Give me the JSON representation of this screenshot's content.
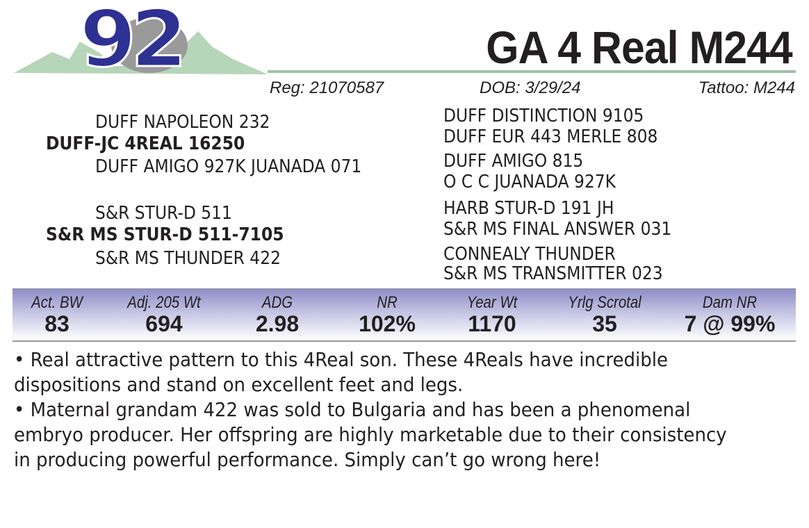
{
  "lot_number": "92",
  "title": "GA 4 Real M244",
  "reg": "Reg: 21070587",
  "dob": "DOB:  3/29/24",
  "tattoo": "Tattoo:  M244",
  "pedigree": {
    "sire": "DUFF-JC 4REAL 16250",
    "sire_sire": "DUFF NAPOLEON 232",
    "sire_dam": "DUFF AMIGO 927K JUANADA 071",
    "sss": "DUFF DISTINCTION 9105",
    "ssd": "DUFF EUR 443 MERLE 808",
    "sds": "DUFF AMIGO 815",
    "sdd": "O C C JUANADA 927K",
    "dam": "S&R MS STUR-D 511-7105",
    "dam_sire": "S&R STUR-D 511",
    "dam_dam": "S&R MS THUNDER 422",
    "dss": "HARB STUR-D 191 JH",
    "dsd": "S&R MS FINAL ANSWER 031",
    "dds": "CONNEALY THUNDER",
    "ddd": "S&R MS TRANSMITTER 023"
  },
  "stats": [
    {
      "label": "Act. BW",
      "value": "83"
    },
    {
      "label": "Adj. 205 Wt",
      "value": "694"
    },
    {
      "label": "ADG",
      "value": "2.98"
    },
    {
      "label": "NR",
      "value": "102%"
    },
    {
      "label": "Year Wt",
      "value": "1170"
    },
    {
      "label": "Yrlg Scrotal",
      "value": "35"
    },
    {
      "label": "Dam NR",
      "value": "7 @ 99%"
    }
  ],
  "notes": [
    "• Real attractive pattern to this 4Real son.  These 4Reals have incredible dispositions and stand on excellent feet and legs.",
    "• Maternal grandam 422 was sold to Bulgaria and has been a phenomenal embryo producer.  Her offspring are highly marketable due to their consistency in producing powerful performance.  Simply can’t go wrong here!"
  ],
  "colors": {
    "lot_number": "#2e3192",
    "mountains": "#9cc3a3",
    "band": "#8e8ec8"
  }
}
